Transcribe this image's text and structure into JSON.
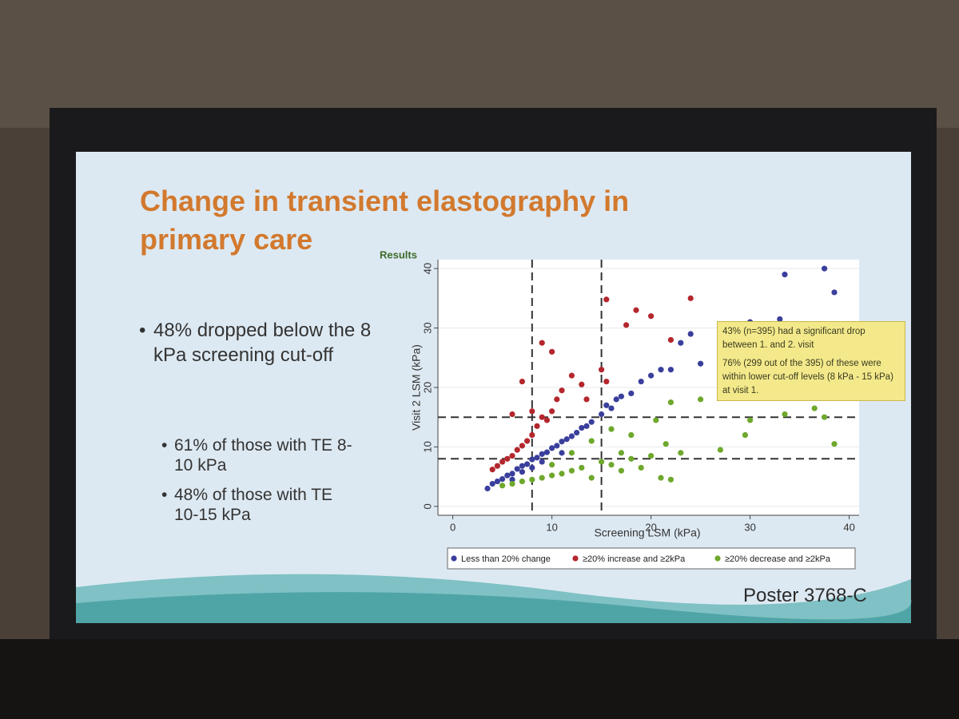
{
  "slide": {
    "title_lines": [
      "Change in transient elastography in",
      "primary care"
    ],
    "bullet": "48% dropped below the 8 kPa screening cut-off",
    "sub_bullets": [
      "61% of those with TE 8-10 kPa",
      "48% of those with TE 10-15 kPa"
    ],
    "footer": "Poster 3768-C"
  },
  "chart_data": {
    "type": "scatter",
    "title": "Results",
    "xlabel": "Screening LSM (kPa)",
    "ylabel": "Visit 2 LSM (kPa)",
    "xlim": [
      -1.5,
      41
    ],
    "ylim": [
      -1.5,
      41.5
    ],
    "xticks": [
      0,
      10,
      20,
      30,
      40
    ],
    "yticks": [
      0,
      10,
      20,
      30,
      40
    ],
    "grid": true,
    "vlines": [
      8,
      15
    ],
    "hlines": [
      8,
      15
    ],
    "annotations": [
      "43% (n=395) had a significant drop between 1. and 2. visit",
      "76% (299 out of the 395) of these were within lower cut-off levels (8 kPa - 15 kPa) at visit 1."
    ],
    "legend": "bottom",
    "series": [
      {
        "name": "Less than 20% change",
        "color": "#3a3f9c",
        "x": [
          3.5,
          4,
          4.5,
          5,
          5.5,
          6,
          6.5,
          7,
          7.5,
          8,
          8.5,
          9,
          9.5,
          10,
          10.5,
          11,
          11.5,
          12,
          12.5,
          13,
          13.5,
          14,
          15,
          15.5,
          16,
          16.5,
          17,
          18,
          19,
          20,
          21,
          22,
          23,
          24,
          25,
          28,
          30,
          33,
          33.5,
          37.5,
          38.5,
          8,
          9,
          11,
          6,
          7
        ],
        "values": [
          3,
          3.8,
          4.2,
          4.6,
          5.2,
          5.5,
          6.3,
          6.8,
          7.1,
          7.9,
          8.2,
          8.8,
          9.1,
          9.8,
          10.2,
          10.9,
          11.3,
          11.8,
          12.4,
          13.2,
          13.5,
          14.2,
          15.5,
          17,
          16.5,
          18,
          18.5,
          19,
          21,
          22,
          23,
          23,
          27.5,
          29,
          24,
          30.5,
          31,
          31.5,
          39,
          40,
          36,
          6.5,
          7.5,
          9,
          4.5,
          5.8
        ]
      },
      {
        "name": "≥20% increase and ≥2kPa",
        "color": "#b3272d",
        "x": [
          4,
          4.5,
          5,
          5.5,
          6,
          6.5,
          7,
          7.5,
          8,
          8.5,
          9,
          9.5,
          10,
          10.5,
          11,
          12,
          13,
          13.5,
          15,
          15.5,
          15.5,
          17.5,
          18.5,
          20,
          22,
          24,
          9,
          7,
          8,
          10,
          6
        ],
        "values": [
          6.2,
          6.8,
          7.5,
          8,
          8.5,
          9.5,
          10.2,
          11,
          12,
          13.5,
          15,
          14.5,
          16,
          18,
          19.5,
          22,
          20.5,
          18,
          23,
          21,
          34.8,
          30.5,
          33,
          32,
          28,
          35,
          27.5,
          21,
          16,
          26,
          15.5
        ]
      },
      {
        "name": "≥20% decrease and ≥2kPa",
        "color": "#6ea82c",
        "x": [
          5,
          6,
          7,
          8,
          9,
          10,
          11,
          12,
          13,
          14,
          15,
          16,
          17,
          18,
          19,
          20,
          21,
          22,
          21.5,
          20.5,
          22,
          23,
          25,
          27,
          29.5,
          30,
          33.5,
          36.5,
          37.5,
          38.5,
          14,
          16,
          18,
          12,
          10,
          17
        ],
        "values": [
          3.5,
          3.8,
          4.2,
          4.5,
          4.8,
          5.2,
          5.5,
          6,
          6.5,
          4.8,
          7.5,
          7,
          6,
          8,
          6.5,
          8.5,
          4.8,
          4.5,
          10.5,
          14.5,
          17.5,
          9,
          18,
          9.5,
          12,
          14.5,
          15.5,
          16.5,
          15,
          10.5,
          11,
          13,
          12,
          9,
          7,
          9
        ]
      }
    ]
  }
}
